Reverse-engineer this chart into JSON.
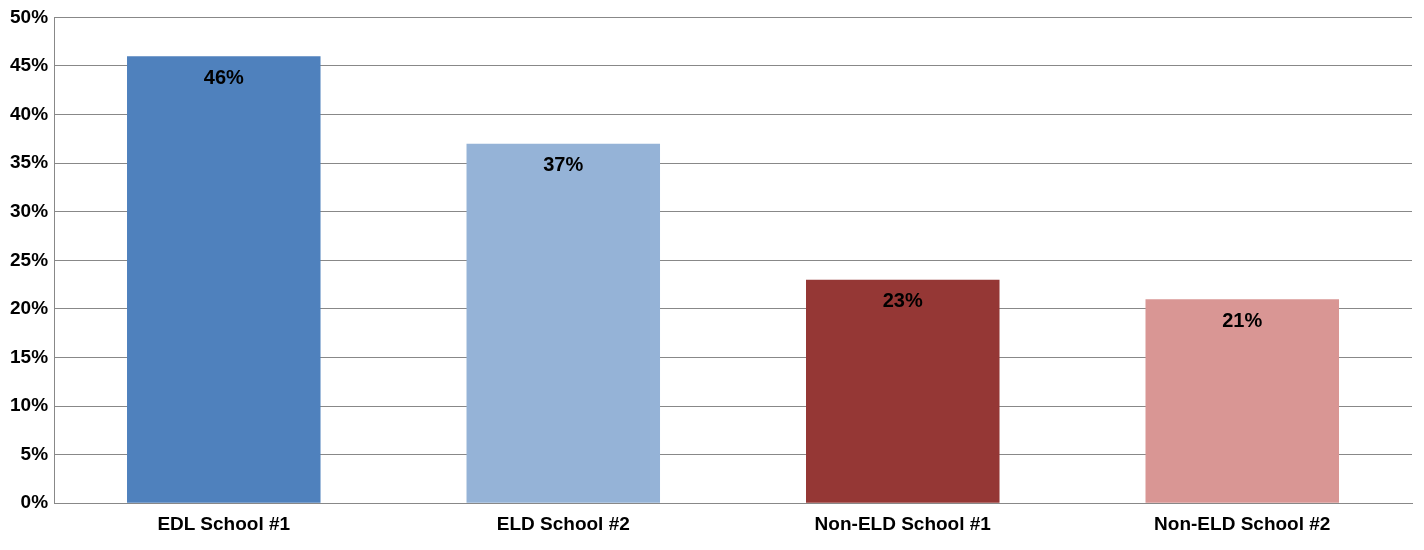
{
  "chart_data": {
    "type": "bar",
    "categories": [
      "EDL School #1",
      "ELD School #2",
      "Non-ELD School #1",
      "Non-ELD School #2"
    ],
    "values": [
      46,
      37,
      23,
      21
    ],
    "colors": [
      "#4f81bd",
      "#95b3d7",
      "#953735",
      "#d99694"
    ],
    "value_labels": [
      "46%",
      "37%",
      "23%",
      "21%"
    ],
    "ylim": [
      0,
      50
    ],
    "yticks": [
      {
        "value": 0,
        "label": "0%"
      },
      {
        "value": 5,
        "label": "5%"
      },
      {
        "value": 10,
        "label": "10%"
      },
      {
        "value": 15,
        "label": "15%"
      },
      {
        "value": 20,
        "label": "20%"
      },
      {
        "value": 25,
        "label": "25%"
      },
      {
        "value": 30,
        "label": "30%"
      },
      {
        "value": 35,
        "label": "35%"
      },
      {
        "value": 40,
        "label": "40%"
      },
      {
        "value": 45,
        "label": "45%"
      },
      {
        "value": 50,
        "label": "50%"
      }
    ],
    "grid": "y",
    "legend": false
  }
}
